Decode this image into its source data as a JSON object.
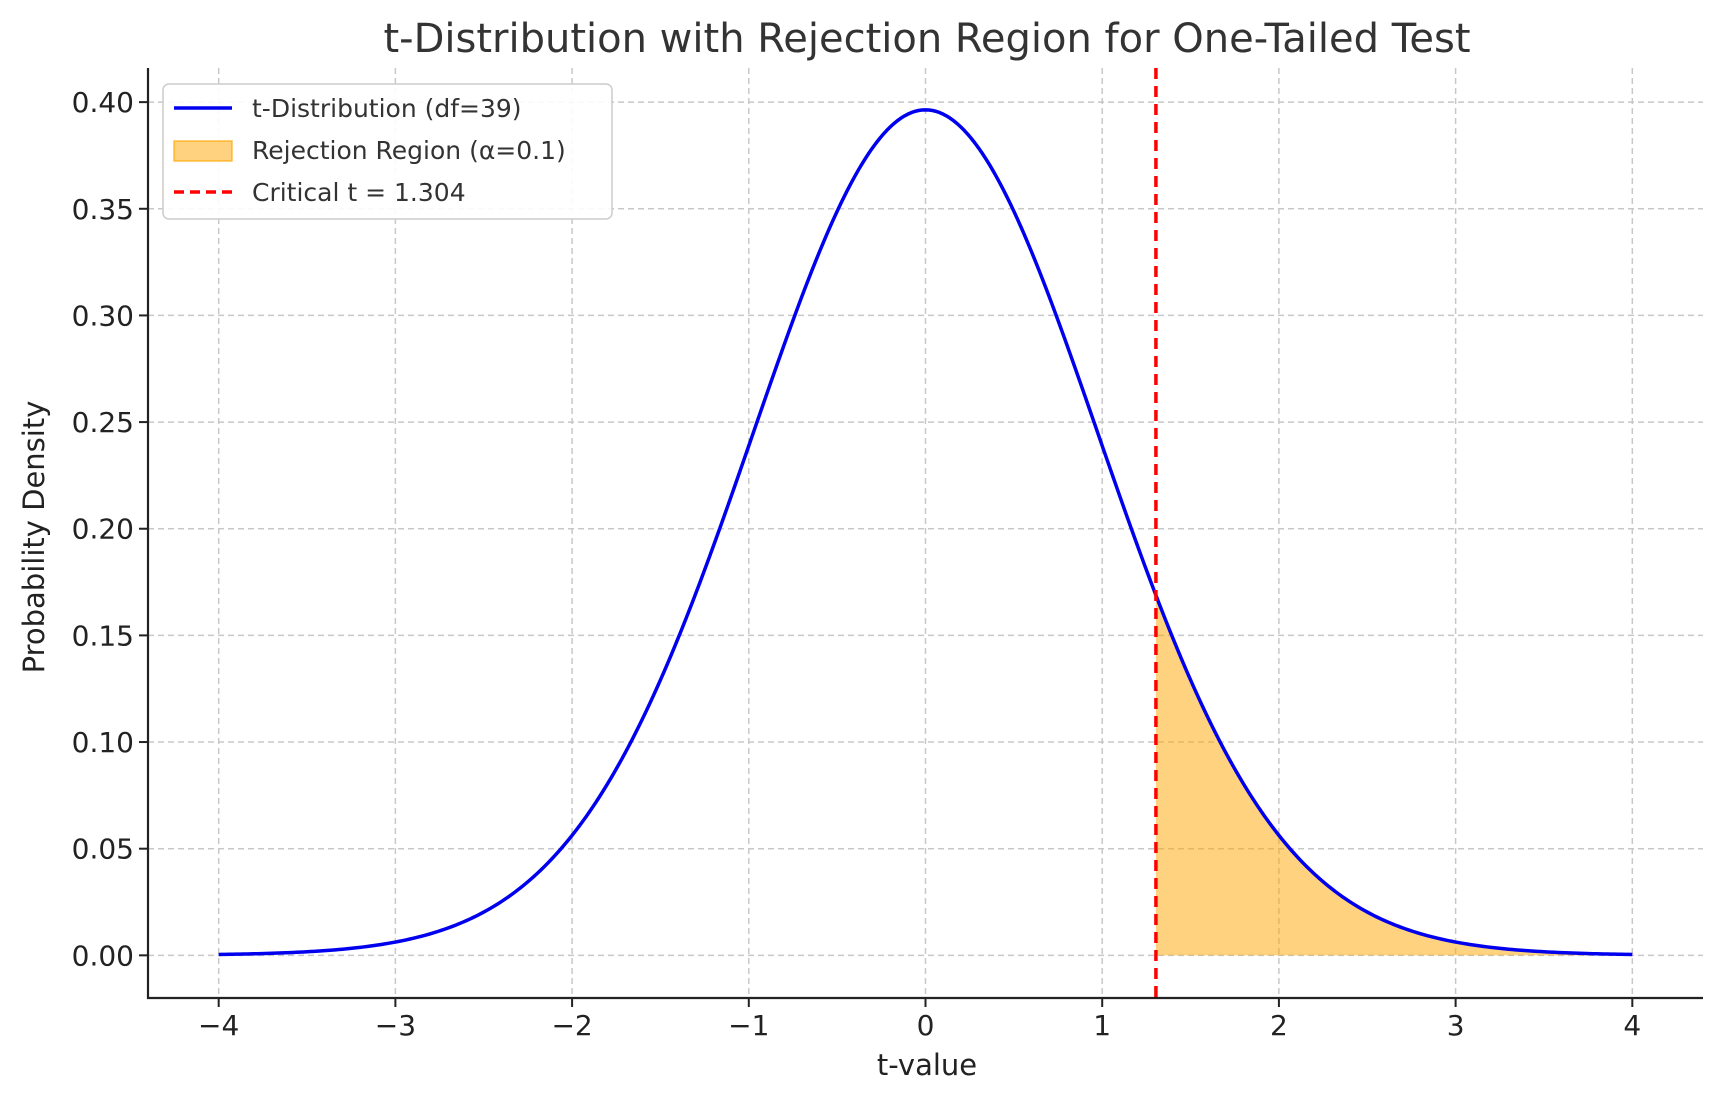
{
  "chart_data": {
    "type": "line",
    "title": "t-Distribution with Rejection Region for One-Tailed Test",
    "xlabel": "t-value",
    "ylabel": "Probability Density",
    "xlim": [
      -4.4,
      4.4
    ],
    "ylim": [
      -0.02,
      0.416
    ],
    "x_ticks": [
      -4,
      -3,
      -2,
      -1,
      0,
      1,
      2,
      3,
      4
    ],
    "x_tick_labels": [
      "−4",
      "−3",
      "−2",
      "−1",
      "0",
      "1",
      "2",
      "3",
      "4"
    ],
    "y_ticks": [
      0.0,
      0.05,
      0.1,
      0.15,
      0.2,
      0.25,
      0.3,
      0.35,
      0.4
    ],
    "y_tick_labels": [
      "0.00",
      "0.05",
      "0.10",
      "0.15",
      "0.20",
      "0.25",
      "0.30",
      "0.35",
      "0.40"
    ],
    "grid": true,
    "legend_position": "top-left",
    "series": [
      {
        "name": "t-Distribution (df=39)",
        "kind": "line",
        "color": "#0000ee",
        "df": 39,
        "x": [
          -4.0,
          -3.5,
          -3.0,
          -2.5,
          -2.0,
          -1.5,
          -1.25,
          -1.0,
          -0.75,
          -0.5,
          -0.25,
          0.0,
          0.25,
          0.5,
          0.75,
          1.0,
          1.25,
          1.304,
          1.5,
          2.0,
          2.5,
          3.0,
          3.5,
          4.0
        ],
        "y": [
          0.0004,
          0.0017,
          0.0056,
          0.0193,
          0.055,
          0.1283,
          0.1812,
          0.2395,
          0.2979,
          0.3479,
          0.3838,
          0.3964,
          0.3838,
          0.3479,
          0.2979,
          0.2395,
          0.1812,
          0.1692,
          0.1283,
          0.055,
          0.0193,
          0.0056,
          0.0017,
          0.0004
        ]
      },
      {
        "name": "Rejection Region (α=0.1)",
        "kind": "area",
        "color": "#ffa500",
        "alpha": 0.1,
        "x_from": 1.304,
        "x_to": 4.0
      },
      {
        "name": "Critical t = 1.304",
        "kind": "vline",
        "color": "#ff0000",
        "x": 1.304
      }
    ]
  }
}
